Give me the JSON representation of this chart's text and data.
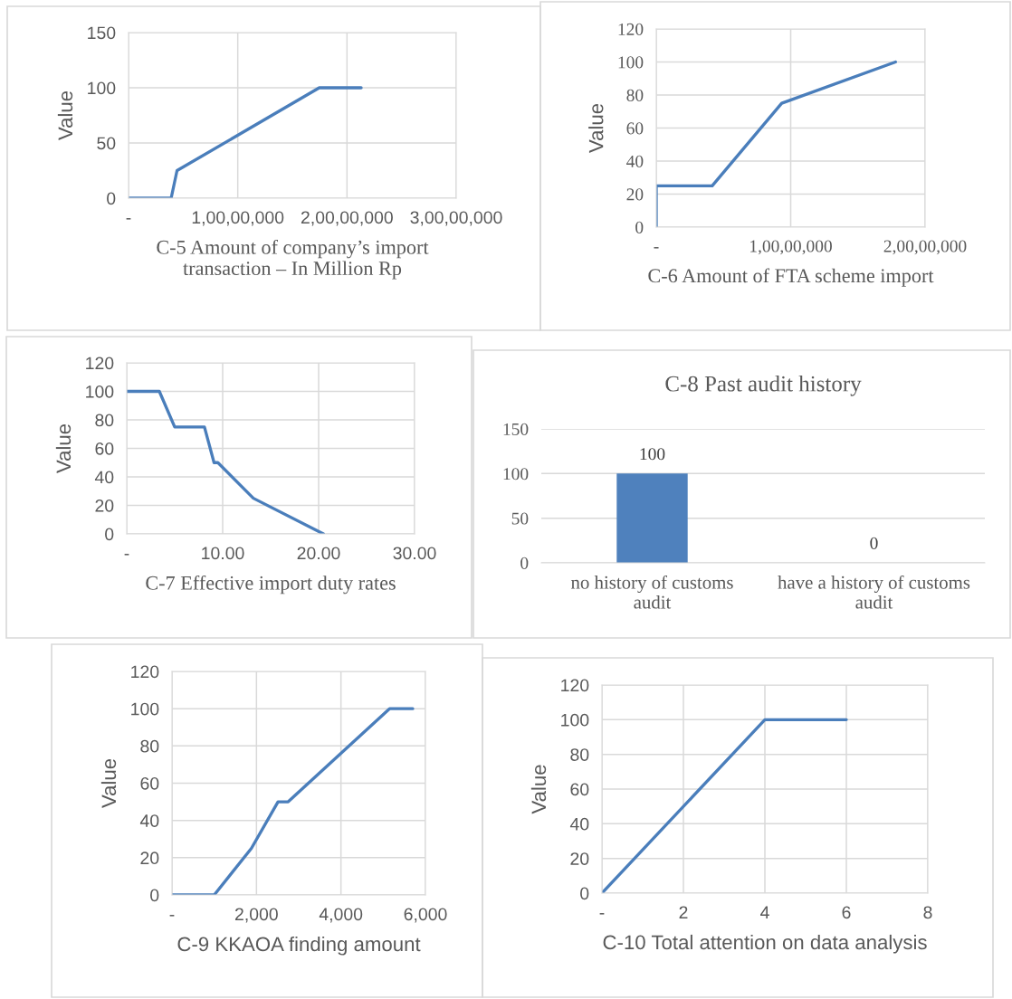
{
  "chart_data": [
    {
      "type": "line",
      "xlabel": "C-5 Amount of company’s import\ntransaction – In Million Rp",
      "ylabel": "Value",
      "x": [
        0,
        3900000,
        4440000,
        17460000,
        21300000
      ],
      "series": [
        {
          "color": "#4a7ebb",
          "values": [
            0,
            0,
            25,
            100,
            100
          ]
        }
      ],
      "xlim": [
        0,
        30000000
      ],
      "xticks": [
        {
          "value": 0,
          "label": "-"
        },
        {
          "value": 10000000,
          "label": "1,00,00,000"
        },
        {
          "value": 20000000,
          "label": "2,00,00,000"
        },
        {
          "value": 30000000,
          "label": "3,00,00,000"
        }
      ],
      "ylim": [
        0,
        150
      ],
      "yticks": [
        0,
        50,
        100,
        150
      ],
      "grid": true
    },
    {
      "type": "line",
      "xlabel": "C-6 Amount of FTA scheme import",
      "ylabel": "Value",
      "x": [
        0,
        0,
        4160000,
        9330000,
        17800000
      ],
      "series": [
        {
          "color": "#4a7ebb",
          "values": [
            0,
            25,
            25,
            75,
            100
          ]
        }
      ],
      "xlim": [
        0,
        20000000
      ],
      "xticks": [
        {
          "value": 0,
          "label": "-"
        },
        {
          "value": 10000000,
          "label": "1,00,00,000"
        },
        {
          "value": 20000000,
          "label": "2,00,00,000"
        }
      ],
      "ylim": [
        0,
        120
      ],
      "yticks": [
        0,
        20,
        40,
        60,
        80,
        100,
        120
      ],
      "grid": true
    },
    {
      "type": "line",
      "xlabel": "C-7 Effective import duty rates",
      "ylabel": "Value",
      "x": [
        0,
        3.4,
        5.0,
        8.1,
        9.1,
        9.5,
        13.2,
        20.5
      ],
      "series": [
        {
          "color": "#4a7ebb",
          "values": [
            100,
            100,
            75,
            75,
            50,
            50,
            25,
            0
          ]
        }
      ],
      "xlim": [
        0,
        30
      ],
      "xticks": [
        {
          "value": 0,
          "label": "-"
        },
        {
          "value": 10,
          "label": "10.00"
        },
        {
          "value": 20,
          "label": "20.00"
        },
        {
          "value": 30,
          "label": "30.00"
        }
      ],
      "ylim": [
        0,
        120
      ],
      "yticks": [
        0,
        20,
        40,
        60,
        80,
        100,
        120
      ],
      "grid": true
    },
    {
      "type": "bar",
      "title": "C-8 Past audit history",
      "categories": [
        "no history of customs\naudit",
        "have a history of customs\naudit"
      ],
      "series": [
        {
          "color": "#4f81bd",
          "values": [
            100,
            0
          ]
        }
      ],
      "ylim": [
        0,
        150
      ],
      "yticks": [
        0,
        50,
        100,
        150
      ],
      "grid": "y",
      "data_labels": true
    },
    {
      "type": "line",
      "xlabel": "C-9 KKAOA finding amount",
      "ylabel": "Value",
      "x": [
        0,
        1000,
        1880,
        2510,
        2750,
        5150,
        5700
      ],
      "series": [
        {
          "color": "#4a7ebb",
          "values": [
            0,
            0,
            25,
            50,
            50,
            100,
            100
          ]
        }
      ],
      "xlim": [
        0,
        6000
      ],
      "xticks": [
        {
          "value": 0,
          "label": "-"
        },
        {
          "value": 2000,
          "label": "2,000"
        },
        {
          "value": 4000,
          "label": "4,000"
        },
        {
          "value": 6000,
          "label": "6,000"
        }
      ],
      "ylim": [
        0,
        120
      ],
      "yticks": [
        0,
        20,
        40,
        60,
        80,
        100,
        120
      ],
      "grid": true
    },
    {
      "type": "line",
      "xlabel": "C-10 Total attention on data analysis",
      "ylabel": "Value",
      "x": [
        0,
        4,
        6
      ],
      "series": [
        {
          "color": "#4a7ebb",
          "values": [
            0,
            100,
            100
          ]
        }
      ],
      "xlim": [
        0,
        8
      ],
      "xticks": [
        {
          "value": 0,
          "label": "-"
        },
        2,
        4,
        6,
        8
      ],
      "ylim": [
        0,
        120
      ],
      "yticks": [
        0,
        20,
        40,
        60,
        80,
        100,
        120
      ],
      "grid": true
    }
  ]
}
